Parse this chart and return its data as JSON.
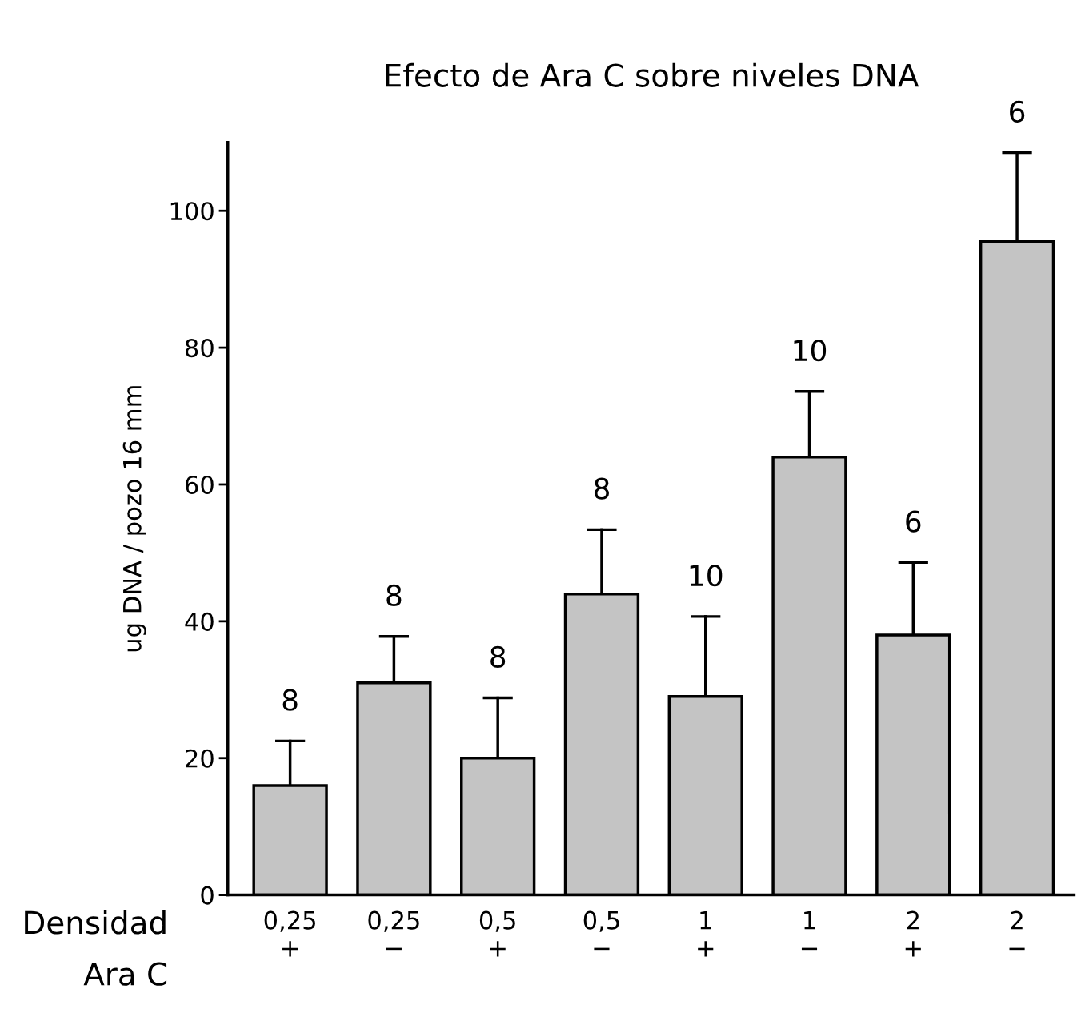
{
  "chart_data": {
    "type": "bar",
    "title": "Efecto de Ara C sobre niveles DNA",
    "ylabel": "ug DNA / pozo 16 mm",
    "categories": [
      "0,25\n+",
      "0,25\n−",
      "0,5\n+",
      "0,5\n−",
      "1\n+",
      "1\n−",
      "2\n+",
      "2\n−"
    ],
    "values": [
      16,
      31,
      20,
      44,
      29,
      64,
      38,
      95.5
    ],
    "errors": [
      [
        16,
        22.5
      ],
      [
        31,
        37.8
      ],
      [
        20,
        28.8
      ],
      [
        44,
        53.4
      ],
      [
        29,
        40.7
      ],
      [
        64,
        73.6
      ],
      [
        38,
        48.6
      ],
      [
        95.5,
        108.5
      ]
    ],
    "color": "#c4c4c4",
    "ylim": [
      0,
      110
    ],
    "yticks": [
      0,
      20,
      40,
      60,
      80,
      100
    ],
    "grid": false,
    "legend": false,
    "annotations": [
      "8",
      "8",
      "8",
      "8",
      "10",
      "10",
      "6",
      "6",
      "Densidad\nAra C"
    ]
  }
}
